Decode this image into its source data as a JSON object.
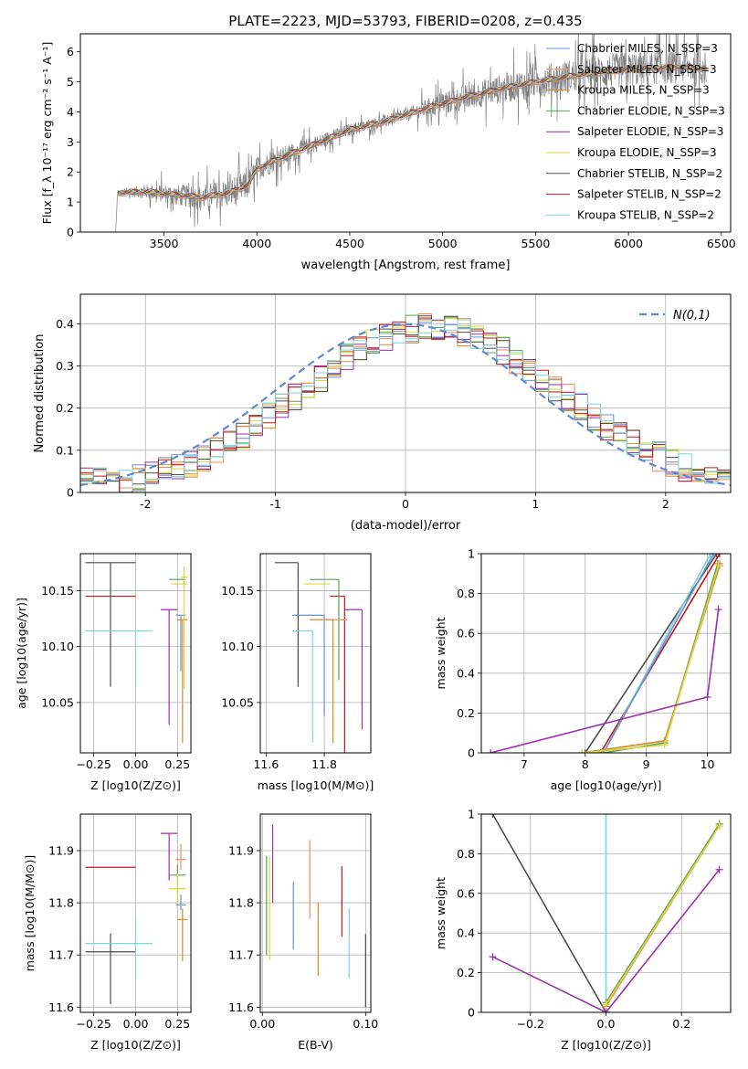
{
  "chart_data": [
    {
      "id": "spectrum",
      "type": "line",
      "title": "PLATE=2223, MJD=53793, FIBERID=0208, z=0.435",
      "xlabel": "wavelength [Angstrom, rest frame]",
      "ylabel": "Flux [f_λ 10⁻¹⁷ erg cm⁻² s⁻¹ A⁻¹]",
      "xlim": [
        3050,
        6550
      ],
      "ylim": [
        0,
        6.6
      ],
      "xticks": [
        3500,
        4000,
        4500,
        5000,
        5500,
        6000,
        6500
      ],
      "yticks": [
        0,
        1,
        2,
        3,
        4,
        5,
        6
      ],
      "grid": false,
      "legend_position": "top-right",
      "observed_color": "#808080",
      "continuum_anchors": [
        [
          3240,
          0
        ],
        [
          3250,
          1.3
        ],
        [
          3400,
          1.35
        ],
        [
          3550,
          1.25
        ],
        [
          3700,
          1.15
        ],
        [
          3850,
          1.3
        ],
        [
          3950,
          1.55
        ],
        [
          4000,
          2.1
        ],
        [
          4100,
          2.4
        ],
        [
          4300,
          2.9
        ],
        [
          4500,
          3.4
        ],
        [
          4700,
          3.7
        ],
        [
          4900,
          4.1
        ],
        [
          5100,
          4.45
        ],
        [
          5300,
          4.75
        ],
        [
          5500,
          5.0
        ],
        [
          5700,
          5.2
        ],
        [
          5900,
          5.35
        ],
        [
          6100,
          5.45
        ],
        [
          6300,
          5.5
        ],
        [
          6400,
          5.45
        ]
      ],
      "noise_segments": [
        [
          3250,
          1.3,
          0.15
        ],
        [
          3500,
          1.2,
          0.45
        ],
        [
          3700,
          1.1,
          0.6
        ],
        [
          3900,
          1.3,
          0.75
        ],
        [
          4000,
          2.1,
          0.6
        ],
        [
          4200,
          2.6,
          0.45
        ],
        [
          4500,
          3.4,
          0.3
        ],
        [
          4800,
          3.9,
          0.3
        ],
        [
          5000,
          4.3,
          0.55
        ],
        [
          5300,
          4.7,
          0.7
        ],
        [
          5600,
          5.0,
          0.8
        ],
        [
          5900,
          5.3,
          0.85
        ],
        [
          6200,
          5.4,
          0.8
        ],
        [
          6420,
          5.4,
          0.8
        ]
      ],
      "series": [
        {
          "name": "Chabrier MILES, N_SSP=3",
          "color": "#6a8fd8"
        },
        {
          "name": "Salpeter MILES, N_SSP=3",
          "color": "#f08c5a"
        },
        {
          "name": "Kroupa MILES, N_SSP=3",
          "color": "#d98a2b"
        },
        {
          "name": "Chabrier ELODIE, N_SSP=3",
          "color": "#5a9e5a"
        },
        {
          "name": "Salpeter ELODIE, N_SSP=3",
          "color": "#9b2fae"
        },
        {
          "name": "Kroupa ELODIE, N_SSP=3",
          "color": "#d6d93a"
        },
        {
          "name": "Chabrier STELIB, N_SSP=2",
          "color": "#4d4d4d"
        },
        {
          "name": "Salpeter STELIB, N_SSP=2",
          "color": "#c0161e"
        },
        {
          "name": "Kroupa STELIB, N_SSP=2",
          "color": "#7fd6d6"
        }
      ]
    },
    {
      "id": "residuals",
      "type": "histogram",
      "xlabel": "(data-model)/error",
      "ylabel": "Normed distribution",
      "xlim": [
        -2.5,
        2.5
      ],
      "ylim": [
        0,
        0.47
      ],
      "xticks": [
        -2,
        -1,
        0,
        1,
        2
      ],
      "yticks": [
        0.0,
        0.1,
        0.2,
        0.3,
        0.4
      ],
      "grid": true,
      "legend": [
        {
          "name": "N(0,1)",
          "style": "dashed",
          "color": "#5b8ad8"
        }
      ],
      "legend_position": "top-right",
      "bin_width": 0.1,
      "series_colors": [
        "#6a8fd8",
        "#f08c5a",
        "#d98a2b",
        "#5a9e5a",
        "#9b2fae",
        "#d6d93a",
        "#4d4d4d",
        "#c0161e",
        "#7fd6d6"
      ]
    },
    {
      "id": "age-vs-Z",
      "type": "errorbar",
      "xlabel": "Z [log10(Z/Z⊙)]",
      "ylabel": "age  [log10(age/yr)]",
      "xlim": [
        -0.33,
        0.33
      ],
      "ylim": [
        10.005,
        10.183
      ],
      "xticks": [
        -0.25,
        0.0,
        0.25
      ],
      "xticklabels": [
        "−0.25",
        "0.00",
        "0.25"
      ],
      "yticks": [
        10.05,
        10.1,
        10.15
      ],
      "yticklabels": [
        "10.05",
        "10.10",
        "10.15"
      ],
      "grid": true,
      "points": [
        {
          "x": -0.15,
          "xerr": 0.15,
          "y": 10.175,
          "yerr": [
            0.111,
            0
          ],
          "color": "#4d4d4d"
        },
        {
          "x": -0.15,
          "xerr": 0.15,
          "y": 10.145,
          "yerr": [
            0,
            0
          ],
          "color": "#c0161e"
        },
        {
          "x": 0.0,
          "xerr": [
            0.3,
            0.1
          ],
          "y": 10.114,
          "yerr": [
            0.05,
            0
          ],
          "color": "#7fd6d6"
        },
        {
          "x": 0.2,
          "xerr": 0.05,
          "y": 10.133,
          "yerr": [
            0.103,
            0
          ],
          "color": "#9b2fae"
        },
        {
          "x": 0.25,
          "xerr": 0.05,
          "y": 10.16,
          "yerr": [
            0,
            0
          ],
          "color": "#5a9e5a"
        },
        {
          "x": 0.26,
          "xerr": 0.05,
          "y": 10.156,
          "yerr": [
            0,
            0
          ],
          "color": "#d6d93a"
        },
        {
          "x": 0.27,
          "xerr": 0.03,
          "y": 10.128,
          "yerr": [
            0.05,
            0
          ],
          "color": "#6a8fd8"
        },
        {
          "x": 0.28,
          "xerr": 0.03,
          "y": 10.124,
          "yerr": [
            0.11,
            0
          ],
          "color": "#d98a2b"
        },
        {
          "x": 0.29,
          "xerr": 0.02,
          "y": 10.162,
          "yerr": [
            0.1,
            0.01
          ],
          "color": "#d6d93a"
        }
      ]
    },
    {
      "id": "age-vs-mass",
      "type": "errorbar",
      "xlabel": "mass [log10(M/M⊙)]",
      "xlim": [
        11.58,
        11.96
      ],
      "ylim": [
        10.005,
        10.183
      ],
      "xticks": [
        11.6,
        11.8
      ],
      "xticklabels": [
        "11.6",
        "11.8"
      ],
      "yticks": [
        10.05,
        10.1,
        10.15
      ],
      "yticklabels": [
        "10.05",
        "10.10",
        "10.15"
      ],
      "grid": true,
      "points": [
        {
          "x": 11.71,
          "xerr": [
            0.08,
            0.0
          ],
          "y": 10.175,
          "yerr": [
            0.111,
            0
          ],
          "color": "#4d4d4d"
        },
        {
          "x": 11.87,
          "xerr": [
            0.05,
            0.0
          ],
          "y": 10.145,
          "yerr": [
            0.14,
            0
          ],
          "color": "#c0161e"
        },
        {
          "x": 11.76,
          "xerr": [
            0.07,
            0.0
          ],
          "y": 10.114,
          "yerr": [
            0.1,
            0
          ],
          "color": "#7fd6d6"
        },
        {
          "x": 11.93,
          "xerr": [
            0.06,
            0.0
          ],
          "y": 10.133,
          "yerr": [
            0.107,
            0
          ],
          "color": "#9b2fae"
        },
        {
          "x": 11.85,
          "xerr": [
            0.1,
            0.0
          ],
          "y": 10.16,
          "yerr": [
            0.09,
            0
          ],
          "color": "#5a9e5a"
        },
        {
          "x": 11.82,
          "xerr": [
            0.09,
            0.0
          ],
          "y": 10.156,
          "yerr": [
            0,
            0
          ],
          "color": "#d6d93a"
        },
        {
          "x": 11.8,
          "xerr": [
            0.11,
            0.0
          ],
          "y": 10.128,
          "yerr": [
            0.09,
            0
          ],
          "color": "#6a8fd8"
        },
        {
          "x": 11.83,
          "xerr": [
            0.08,
            0.0
          ],
          "y": 10.124,
          "yerr": [
            0.11,
            0
          ],
          "color": "#d98a2b"
        },
        {
          "x": 11.88,
          "xerr": [
            0.06,
            0.0
          ],
          "y": 10.124,
          "yerr": [
            0,
            0
          ],
          "color": "#f08c5a"
        }
      ]
    },
    {
      "id": "massweight-vs-age",
      "type": "line",
      "xlabel": "age  [log10(age/yr)]",
      "ylabel": "mass weight",
      "xlim": [
        6.3,
        10.38
      ],
      "ylim": [
        0,
        1.0
      ],
      "xticks": [
        7,
        8,
        9,
        10
      ],
      "yticks": [
        0.0,
        0.2,
        0.4,
        0.6,
        0.8,
        1.0
      ],
      "grid": true,
      "series": [
        {
          "color": "#4d4d4d",
          "x": [
            8.0,
            10.15
          ],
          "y": [
            0.0,
            1.0
          ]
        },
        {
          "color": "#c0161e",
          "x": [
            8.25,
            10.2
          ],
          "y": [
            0.0,
            1.0
          ]
        },
        {
          "color": "#7fd6d6",
          "x": [
            8.3,
            10.05
          ],
          "y": [
            0.0,
            1.0
          ]
        },
        {
          "color": "#6a8fd8",
          "x": [
            8.3,
            10.1
          ],
          "y": [
            0.0,
            1.0
          ]
        },
        {
          "color": "#5a9e5a",
          "x": [
            8.3,
            9.3,
            10.17
          ],
          "y": [
            0.0,
            0.05,
            0.95
          ]
        },
        {
          "color": "#f08c5a",
          "x": [
            7.95,
            9.3,
            10.2
          ],
          "y": [
            0.0,
            0.06,
            0.95
          ]
        },
        {
          "color": "#d98a2b",
          "x": [
            7.95,
            9.3,
            10.2
          ],
          "y": [
            0.0,
            0.06,
            0.94
          ]
        },
        {
          "color": "#d6d93a",
          "x": [
            7.95,
            9.3,
            10.18
          ],
          "y": [
            0.0,
            0.04,
            0.94
          ]
        },
        {
          "color": "#9b2fae",
          "x": [
            6.45,
            10.0,
            10.18
          ],
          "y": [
            0.0,
            0.28,
            0.72
          ]
        }
      ]
    },
    {
      "id": "mass-vs-Z",
      "type": "errorbar",
      "xlabel": "Z [log10(Z/Z⊙)]",
      "ylabel": "mass [log10(M/M⊙)]",
      "xlim": [
        -0.33,
        0.33
      ],
      "ylim": [
        11.59,
        11.97
      ],
      "xticks": [
        -0.25,
        0.0,
        0.25
      ],
      "xticklabels": [
        "−0.25",
        "0.00",
        "0.25"
      ],
      "yticks": [
        11.6,
        11.7,
        11.8,
        11.9
      ],
      "yticklabels": [
        "11.6",
        "11.7",
        "11.8",
        "11.9"
      ],
      "grid": true,
      "points": [
        {
          "x": -0.15,
          "xerr": 0.15,
          "y": 11.868,
          "yerr": [
            0,
            0
          ],
          "color": "#c0161e"
        },
        {
          "x": -0.15,
          "xerr": 0.15,
          "y": 11.706,
          "yerr": [
            0.1,
            0.035
          ],
          "color": "#4d4d4d"
        },
        {
          "x": 0.0,
          "xerr": [
            0.3,
            0.1
          ],
          "y": 11.722,
          "yerr": [
            0.07,
            0.05
          ],
          "color": "#7fd6d6"
        },
        {
          "x": 0.2,
          "xerr": 0.05,
          "y": 11.933,
          "yerr": [
            0.09,
            0
          ],
          "color": "#9b2fae"
        },
        {
          "x": 0.27,
          "xerr": 0.03,
          "y": 11.883,
          "yerr": [
            0.02,
            0.03
          ],
          "color": "#f08c5a"
        },
        {
          "x": 0.25,
          "xerr": 0.05,
          "y": 11.853,
          "yerr": [
            0.01,
            0.02
          ],
          "color": "#5a9e5a"
        },
        {
          "x": 0.25,
          "xerr": 0.05,
          "y": 11.827,
          "yerr": [
            0.03,
            0.03
          ],
          "color": "#d6d93a"
        },
        {
          "x": 0.27,
          "xerr": 0.03,
          "y": 11.796,
          "yerr": [
            0.01,
            0.02
          ],
          "color": "#6a8fd8"
        },
        {
          "x": 0.28,
          "xerr": 0.03,
          "y": 11.768,
          "yerr": [
            0.08,
            0.02
          ],
          "color": "#d98a2b"
        }
      ]
    },
    {
      "id": "mass-vs-EBV",
      "type": "errorbar",
      "xlabel": "E(B-V)",
      "xlim": [
        -0.002,
        0.105
      ],
      "ylim": [
        11.59,
        11.97
      ],
      "xticks": [
        0.0,
        0.1
      ],
      "xticklabels": [
        "0.00",
        "0.10"
      ],
      "yticks": [
        11.6,
        11.7,
        11.8,
        11.9
      ],
      "yticklabels": [
        "11.6",
        "11.7",
        "11.8",
        "11.9"
      ],
      "grid": true,
      "points": [
        {
          "x": 0.004,
          "y": 11.79,
          "yerr": [
            0.09,
            0.1
          ],
          "color": "#5a9e5a"
        },
        {
          "x": 0.007,
          "y": 11.79,
          "yerr": [
            0.1,
            0.1
          ],
          "color": "#d6d93a"
        },
        {
          "x": 0.01,
          "y": 11.87,
          "yerr": [
            0.07,
            0.08
          ],
          "color": "#9b2fae"
        },
        {
          "x": 0.03,
          "y": 11.78,
          "yerr": [
            0.07,
            0.06
          ],
          "color": "#6a8fd8"
        },
        {
          "x": 0.046,
          "y": 11.85,
          "yerr": [
            0.08,
            0.07
          ],
          "color": "#f08c5a"
        },
        {
          "x": 0.054,
          "y": 11.73,
          "yerr": [
            0.07,
            0.07
          ],
          "color": "#d98a2b"
        },
        {
          "x": 0.077,
          "y": 11.8,
          "yerr": [
            0.065,
            0.07
          ],
          "color": "#c0161e"
        },
        {
          "x": 0.084,
          "y": 11.72,
          "yerr": [
            0.065,
            0.07
          ],
          "color": "#7fd6d6"
        },
        {
          "x": 0.1,
          "y": 11.67,
          "yerr": [
            0.07,
            0.07
          ],
          "color": "#4d4d4d"
        }
      ]
    },
    {
      "id": "massweight-vs-Z",
      "type": "line",
      "xlabel": "Z [log10(Z/Z⊙)]",
      "ylabel": "mass weight",
      "xlim": [
        -0.33,
        0.33
      ],
      "ylim": [
        0,
        1.0
      ],
      "xticks": [
        -0.2,
        0.0,
        0.2
      ],
      "xticklabels": [
        "−0.2",
        "0.0",
        "0.2"
      ],
      "yticks": [
        0.0,
        0.2,
        0.4,
        0.6,
        0.8,
        1.0
      ],
      "grid": true,
      "series": [
        {
          "color": "#4d4d4d",
          "x": [
            -0.3,
            0.0
          ],
          "y": [
            1.0,
            0.0
          ]
        },
        {
          "color": "#7fd6d6",
          "x": [
            0.0,
            0.0
          ],
          "y": [
            0.0,
            1.0
          ]
        },
        {
          "color": "#9b2fae",
          "x": [
            -0.3,
            0.0,
            0.3
          ],
          "y": [
            0.28,
            0.0,
            0.72
          ]
        },
        {
          "color": "#d98a2b",
          "x": [
            0.0,
            0.3
          ],
          "y": [
            0.03,
            0.94
          ]
        },
        {
          "color": "#f08c5a",
          "x": [
            0.0,
            0.3
          ],
          "y": [
            0.03,
            0.95
          ]
        },
        {
          "color": "#5a9e5a",
          "x": [
            0.0,
            0.3
          ],
          "y": [
            0.05,
            0.95
          ]
        },
        {
          "color": "#d6d93a",
          "x": [
            0.0,
            0.3
          ],
          "y": [
            0.04,
            0.94
          ]
        }
      ]
    }
  ]
}
